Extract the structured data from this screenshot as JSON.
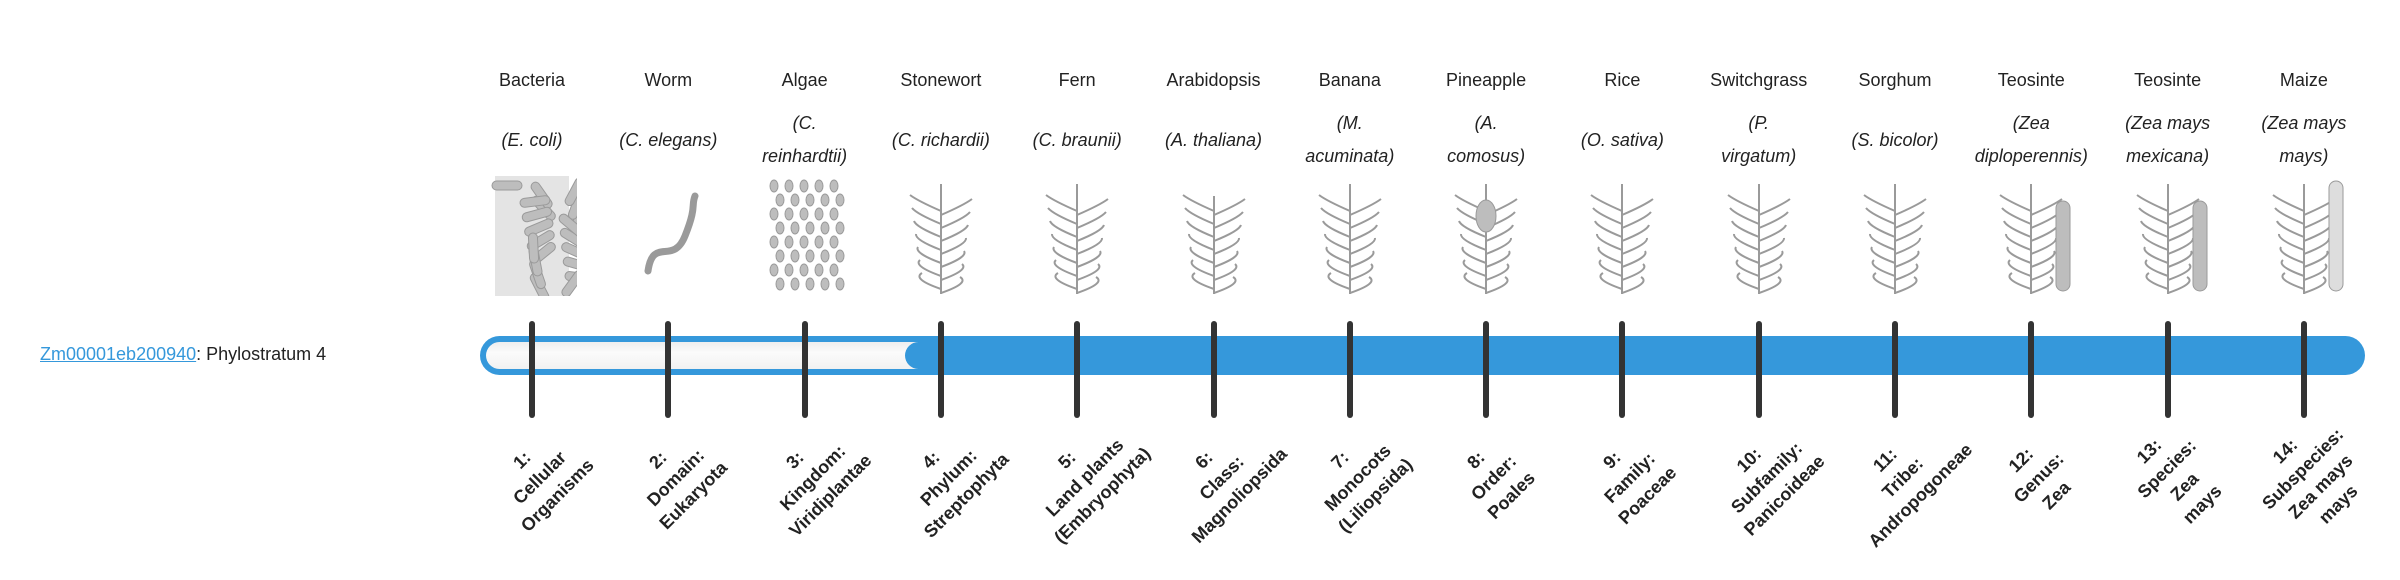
{
  "gene": {
    "id": "Zm00001eb200940",
    "suffix": ": Phylostratum 4"
  },
  "phylostratum": {
    "current": 4,
    "total": 14
  },
  "colors": {
    "accent": "#3598db",
    "tick": "#333333",
    "empty": "#f5f5f5"
  },
  "organisms": [
    {
      "common": "Bacteria",
      "scientific": "(E. coli)",
      "icon": "bacteria-icon",
      "stratum": "1:\nCellular\nOrganisms"
    },
    {
      "common": "Worm",
      "scientific": "(C. elegans)",
      "icon": "worm-icon",
      "stratum": "2:\nDomain:\nEukaryota"
    },
    {
      "common": "Algae",
      "scientific": "(C.\nreinhardtii)",
      "icon": "algae-icon",
      "stratum": "3:\nKingdom:\nViridiplantae"
    },
    {
      "common": "Stonewort",
      "scientific": "(C. richardii)",
      "icon": "stonewort-icon",
      "stratum": "4:\nPhylum:\nStreptophyta"
    },
    {
      "common": "Fern",
      "scientific": "(C. braunii)",
      "icon": "fern-icon",
      "stratum": "5:\nLand plants\n(Embryophyta)"
    },
    {
      "common": "Arabidopsis",
      "scientific": "(A. thaliana)",
      "icon": "arabidopsis-icon",
      "stratum": "6:\nClass:\nMagnoliopsida"
    },
    {
      "common": "Banana",
      "scientific": "(M.\nacuminata)",
      "icon": "banana-icon",
      "stratum": "7:\nMonocots\n(Liliopsida)"
    },
    {
      "common": "Pineapple",
      "scientific": "(A.\ncomosus)",
      "icon": "pineapple-icon",
      "stratum": "8:\nOrder:\nPoales"
    },
    {
      "common": "Rice",
      "scientific": "(O. sativa)",
      "icon": "rice-icon",
      "stratum": "9:\nFamily:\nPoaceae"
    },
    {
      "common": "Switchgrass",
      "scientific": "(P.\nvirgatum)",
      "icon": "switchgrass-icon",
      "stratum": "10:\nSubfamily:\nPanicoideae"
    },
    {
      "common": "Sorghum",
      "scientific": "(S. bicolor)",
      "icon": "sorghum-icon",
      "stratum": "11:\nTribe:\nAndropogoneae"
    },
    {
      "common": "Teosinte",
      "scientific": "(Zea\ndiploperennis)",
      "icon": "teosinte-icon",
      "stratum": "12:\nGenus:\nZea"
    },
    {
      "common": "Teosinte",
      "scientific": "(Zea mays\nmexicana)",
      "icon": "teosinte-icon",
      "stratum": "13:\nSpecies:\nZea\nmays"
    },
    {
      "common": "Maize",
      "scientific": "(Zea mays\nmays)",
      "icon": "maize-icon",
      "stratum": "14:\nSubspecies:\nZea mays\nmays"
    }
  ]
}
